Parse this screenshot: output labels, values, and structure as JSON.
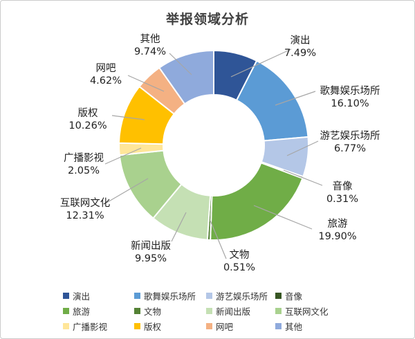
{
  "chart_data": {
    "type": "pie",
    "subtype": "donut",
    "title": "举报领域分析",
    "categories": [
      "演出",
      "歌舞娱乐场所",
      "游艺娱乐场所",
      "音像",
      "旅游",
      "文物",
      "新闻出版",
      "互联网文化",
      "广播影视",
      "版权",
      "网吧",
      "其他"
    ],
    "values": [
      7.49,
      16.1,
      6.77,
      0.31,
      19.9,
      0.51,
      9.95,
      12.31,
      2.05,
      10.26,
      4.62,
      9.74
    ],
    "labels": [
      "7.49%",
      "16.10%",
      "6.77%",
      "0.31%",
      "19.90%",
      "0.51%",
      "9.95%",
      "12.31%",
      "2.05%",
      "10.26%",
      "4.62%",
      "9.74%"
    ],
    "colors": [
      "#2F5597",
      "#5B9BD5",
      "#B4C7E7",
      "#375623",
      "#70AD47",
      "#548235",
      "#C5E0B4",
      "#A9D18E",
      "#FFE699",
      "#FFC000",
      "#F4B183",
      "#8FAADC"
    ],
    "start_angle_deg": 0,
    "direction": "clockwise",
    "hole_ratio": 0.53,
    "slice_border_color": "#ffffff",
    "leader_line_color": "#a6a6a6",
    "legend_position": "bottom",
    "legend_columns": 4
  }
}
